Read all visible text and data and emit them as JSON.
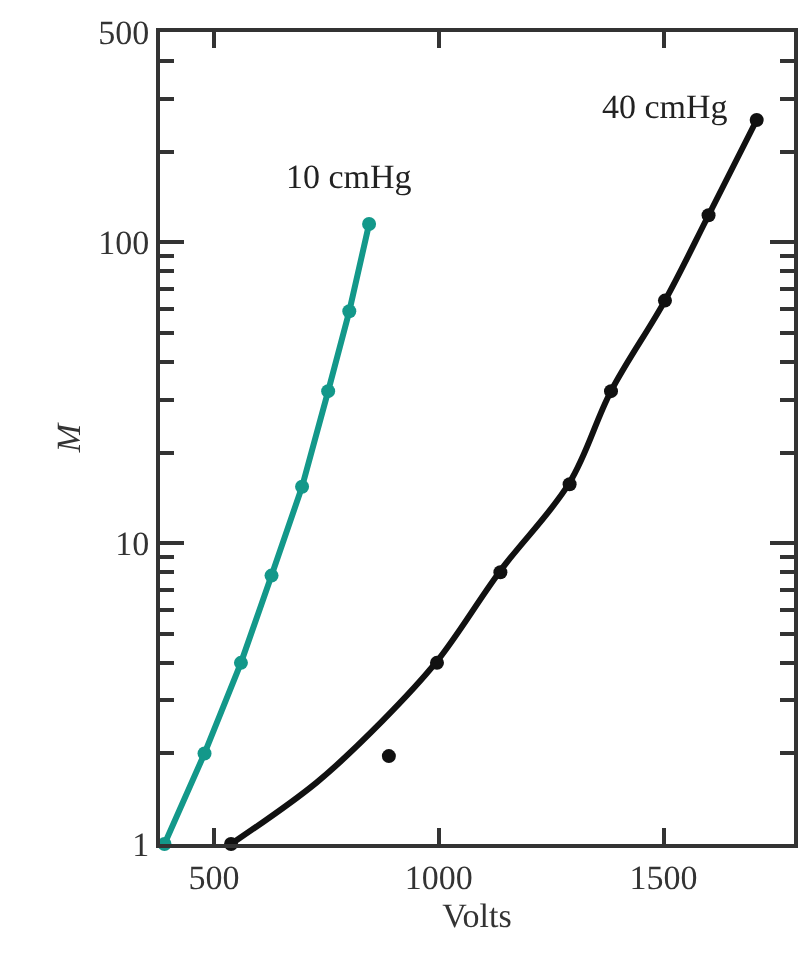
{
  "chart_data": {
    "type": "line",
    "xlabel": "Volts",
    "ylabel": "M",
    "log": "y",
    "legend": false,
    "xlim": [
      380,
      1790
    ],
    "xticks": [
      500,
      1000,
      1500
    ],
    "ylim": [
      1,
      500
    ],
    "yticks": [
      1,
      {
        "value": 2,
        "label": null
      },
      {
        "value": 3,
        "label": null
      },
      {
        "value": 4,
        "label": null
      },
      {
        "value": 5,
        "label": null
      },
      {
        "value": 6,
        "label": null
      },
      {
        "value": 7,
        "label": null
      },
      {
        "value": 8,
        "label": null
      },
      {
        "value": 9,
        "label": null
      },
      10,
      {
        "value": 20,
        "label": null
      },
      {
        "value": 30,
        "label": null
      },
      {
        "value": 40,
        "label": null
      },
      {
        "value": 50,
        "label": null
      },
      {
        "value": 60,
        "label": null
      },
      {
        "value": 70,
        "label": null
      },
      {
        "value": 80,
        "label": null
      },
      {
        "value": 90,
        "label": null
      },
      100,
      {
        "value": 200,
        "label": null
      },
      {
        "value": 300,
        "label": null
      },
      {
        "value": 400,
        "label": null
      },
      500
    ],
    "series": [
      {
        "name": "10 cmHg",
        "color": "#13988a",
        "marker": "circle",
        "x": [
          390,
          479,
          560,
          628,
          696,
          754,
          801,
          845
        ],
        "values": [
          1,
          2,
          4,
          7.8,
          15.4,
          32,
          59,
          115
        ]
      },
      {
        "name": "40 cmHg",
        "color": "#111111",
        "marker": "none",
        "x": [
          538,
          728,
          873,
          996,
          1137,
          1291,
          1383,
          1503,
          1600,
          1707
        ],
        "values": [
          1,
          1.6,
          2.55,
          4.05,
          8.1,
          15.9,
          32,
          64,
          123,
          255
        ]
      },
      {
        "color": "#111111",
        "type": "scatter",
        "marker": "circle",
        "x": [
          538,
          889,
          996,
          1137,
          1291,
          1383,
          1503,
          1600,
          1707
        ],
        "values": [
          1,
          1.96,
          4,
          8,
          15.7,
          32,
          64,
          123,
          255
        ]
      }
    ]
  }
}
